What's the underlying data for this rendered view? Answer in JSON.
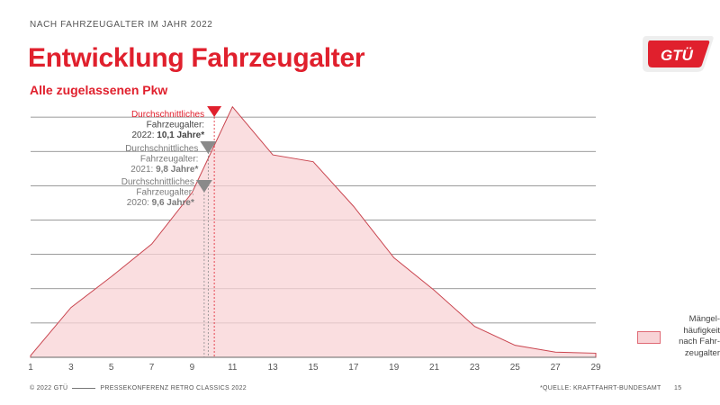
{
  "header": {
    "kicker": "NACH FAHRZEUGALTER IM JAHR 2022",
    "title": "Entwicklung Fahrzeugalter",
    "subtitle": "Alle zugelassenen Pkw",
    "logo_text": "GTÜ"
  },
  "footer": {
    "left_a": "© 2022 GTÜ",
    "left_b": "PRESSEKONFERENZ RETRO CLASSICS 2022",
    "source": "*QUELLE: KRAFTFAHRT-BUNDESAMT",
    "page": "15"
  },
  "colors": {
    "accent": "#e0202d",
    "area_fill": "#f8d3d6",
    "area_line": "#c9454f",
    "grid": "#7a7a7a",
    "marker_gray": "#8a8a8a",
    "marker_red": "#e0202d"
  },
  "chart_data": {
    "type": "area",
    "x": [
      1,
      3,
      5,
      7,
      9,
      11,
      13,
      15,
      17,
      19,
      21,
      23,
      25,
      27,
      29
    ],
    "values": [
      0.5,
      14.5,
      23.5,
      33,
      48,
      73,
      59,
      57,
      44,
      29,
      19.5,
      9,
      3.5,
      1.5,
      1.2
    ],
    "xlim": [
      1,
      29
    ],
    "ylim": [
      0,
      80
    ],
    "x_ticks": [
      "1",
      "3",
      "5",
      "7",
      "9",
      "11",
      "13",
      "15",
      "17",
      "19",
      "21",
      "23",
      "25",
      "27",
      "29"
    ],
    "gridlines": [
      10,
      20,
      30,
      40,
      50,
      60,
      70
    ],
    "y_tick_labels_shown": false,
    "xlabel": "",
    "ylabel": "",
    "legend": {
      "label": "Mängel­häufigkeit nach Fahr­zeugalter",
      "placement": "right"
    },
    "legend_lines": [
      "Mängel-",
      "häufigkeit",
      "nach Fahr-",
      "zeugalter"
    ],
    "annotations": [
      {
        "year": "2022",
        "value": 10.1,
        "color": "red",
        "lines": [
          "Durchschnittliches",
          "Fahrzeugalter:",
          "2022: ",
          "10,1 Jahre*"
        ]
      },
      {
        "year": "2021",
        "value": 9.8,
        "color": "gray",
        "lines": [
          "Durchschnittliches",
          "Fahrzeugalter:",
          "2021: ",
          "9,8 Jahre*"
        ]
      },
      {
        "year": "2020",
        "value": 9.6,
        "color": "gray",
        "lines": [
          "Durchschnittliches",
          "Fahrzeugalter:",
          "2020: ",
          "9,6 Jahre*"
        ]
      }
    ]
  }
}
